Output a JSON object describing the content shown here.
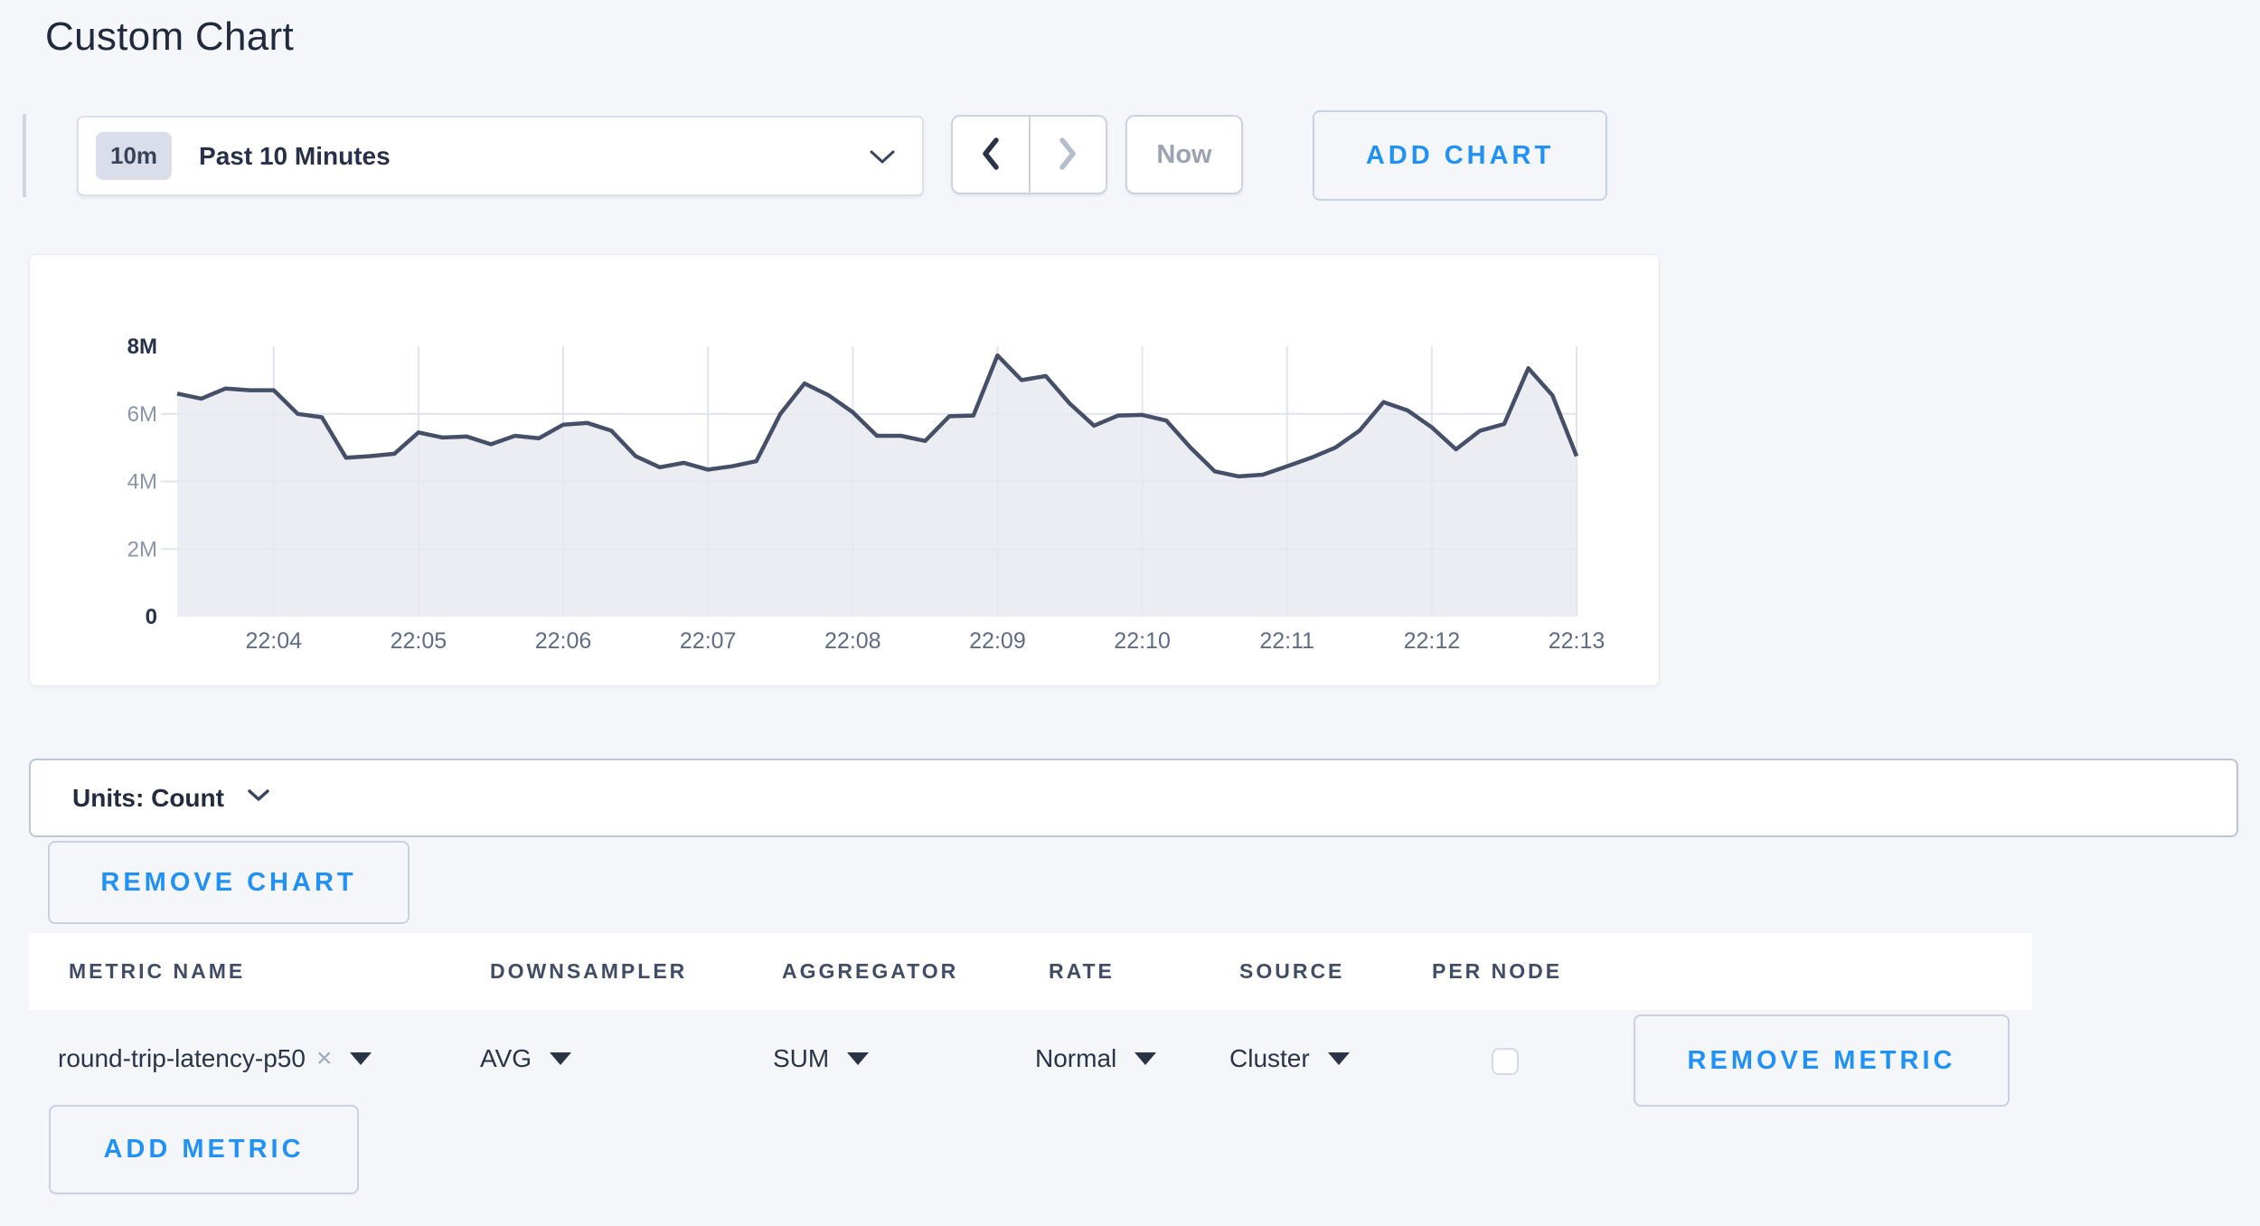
{
  "page": {
    "title": "Custom Chart",
    "background": "#f4f6fa"
  },
  "colors": {
    "accent_blue": "#2191f3",
    "line": "#454f68",
    "fill": "rgba(231,233,240,0.8)",
    "grid": "#dfe4ed"
  },
  "toolbar": {
    "range_badge": "10m",
    "range_label": "Past 10 Minutes",
    "now_label": "Now",
    "add_chart_label": "ADD CHART",
    "icons": {
      "range_dropdown": "chevron-down",
      "prev": "chevron-left",
      "next": "chevron-right"
    }
  },
  "chart_data": {
    "type": "area",
    "title": "",
    "xlabel": "",
    "ylabel": "",
    "x_start": "22:03:20",
    "x_interval_seconds": 10,
    "values": [
      6600000,
      6450000,
      6750000,
      6700000,
      6700000,
      6000000,
      5900000,
      4700000,
      4750000,
      4820000,
      5450000,
      5300000,
      5330000,
      5100000,
      5350000,
      5280000,
      5680000,
      5730000,
      5500000,
      4750000,
      4420000,
      4550000,
      4350000,
      4450000,
      4600000,
      6000000,
      6900000,
      6550000,
      6050000,
      5350000,
      5350000,
      5200000,
      5930000,
      5950000,
      7730000,
      7000000,
      7120000,
      6300000,
      5650000,
      5950000,
      5970000,
      5800000,
      5000000,
      4300000,
      4150000,
      4200000,
      4450000,
      4700000,
      5000000,
      5500000,
      6350000,
      6100000,
      5600000,
      4950000,
      5500000,
      5700000,
      7350000,
      6550000,
      4750000
    ],
    "x_ticks": [
      "22:04",
      "22:05",
      "22:06",
      "22:07",
      "22:08",
      "22:09",
      "22:10",
      "22:11",
      "22:12",
      "22:13"
    ],
    "y_ticks": [
      {
        "value": 8000000,
        "label": "8M"
      },
      {
        "value": 6000000,
        "label": "6M"
      },
      {
        "value": 4000000,
        "label": "4M"
      },
      {
        "value": 2000000,
        "label": "2M"
      },
      {
        "value": 0,
        "label": "0"
      }
    ],
    "ylim": [
      0,
      8000000
    ],
    "grid": true,
    "legend": "none"
  },
  "units_bar": {
    "label": "Units: Count",
    "icon": "chevron-down"
  },
  "buttons": {
    "remove_chart": "REMOVE CHART",
    "add_metric": "ADD METRIC",
    "remove_metric": "REMOVE METRIC"
  },
  "metrics_table": {
    "headers": [
      "METRIC NAME",
      "DOWNSAMPLER",
      "AGGREGATOR",
      "RATE",
      "SOURCE",
      "PER NODE"
    ],
    "rows": [
      {
        "metric_name": "round-trip-latency-p50",
        "remove_icon": "×",
        "downsampler": "AVG",
        "aggregator": "SUM",
        "rate": "Normal",
        "source": "Cluster",
        "per_node_checked": false
      }
    ]
  }
}
